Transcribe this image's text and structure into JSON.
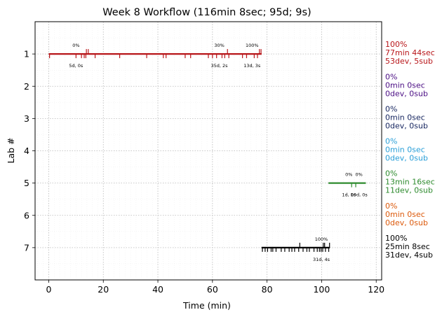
{
  "chart_data": {
    "type": "event-timeline",
    "title": "Week 8 Workflow (116min 8sec; 95d; 9s)",
    "xlabel": "Time (min)",
    "ylabel": "Lab #",
    "xlim": [
      -5,
      122
    ],
    "ylim": [
      8,
      0
    ],
    "xticks": [
      0,
      20,
      40,
      60,
      80,
      100,
      120
    ],
    "yticks": [
      1,
      2,
      3,
      4,
      5,
      6,
      7
    ],
    "grid": true,
    "labs": [
      {
        "lab": 1,
        "color": "#b8161a",
        "span": [
          0,
          78
        ],
        "dev_events": [
          0.3,
          10,
          12,
          13,
          13.6,
          17,
          26,
          35.9,
          42,
          43,
          50,
          52,
          58.5,
          60,
          61.5,
          63.5,
          64.5,
          66,
          71,
          72.5,
          75.3,
          76.5
        ],
        "sub_events": [
          13.8,
          14.5,
          65.5,
          77.2,
          77.8
        ],
        "annotations": [
          {
            "x": 10,
            "pct": "0%",
            "counts": "5d, 0s"
          },
          {
            "x": 62.5,
            "pct": "30%",
            "counts": "35d, 2s"
          },
          {
            "x": 74.5,
            "pct": "100%",
            "counts": "13d, 3s"
          }
        ],
        "summary": [
          "100%",
          "77min 44sec",
          "53dev, 5sub"
        ]
      },
      {
        "lab": 2,
        "color": "#4b0e84",
        "dev_events": [],
        "sub_events": [],
        "annotations": [],
        "summary": [
          "0%",
          "0min 0sec",
          "0dev, 0sub"
        ]
      },
      {
        "lab": 3,
        "color": "#16255f",
        "dev_events": [],
        "sub_events": [],
        "annotations": [],
        "summary": [
          "0%",
          "0min 0sec",
          "0dev, 0sub"
        ]
      },
      {
        "lab": 4,
        "color": "#2a9fd8",
        "dev_events": [],
        "sub_events": [],
        "annotations": [],
        "summary": [
          "0%",
          "0min 0sec",
          "0dev, 0sub"
        ]
      },
      {
        "lab": 5,
        "color": "#2e8b2e",
        "span": [
          102.5,
          116.2
        ],
        "dev_events": [
          111,
          112.5
        ],
        "sub_events": [],
        "annotations": [
          {
            "x": 110,
            "pct": "0%",
            "counts": "1d, 0s"
          },
          {
            "x": 113.7,
            "pct": "0%",
            "counts": "10d, 0s"
          }
        ],
        "summary": [
          "0%",
          "13min 16sec",
          "11dev, 0sub"
        ]
      },
      {
        "lab": 6,
        "color": "#dc5a0c",
        "dev_events": [],
        "sub_events": [],
        "annotations": [],
        "summary": [
          "0%",
          "0min 0sec",
          "0dev, 0sub"
        ]
      },
      {
        "lab": 7,
        "color": "#000000",
        "span": [
          78,
          103
        ],
        "dev_events": [
          78.3,
          79.3,
          80.2,
          81.5,
          82.1,
          83.3,
          85.2,
          86.5,
          88.1,
          89.1,
          90.1,
          91.6,
          93.2,
          94.6,
          95.5,
          97.2,
          98.4,
          99.2,
          99.8,
          100.4,
          101.4,
          102.6
        ],
        "sub_events": [
          92.0,
          100.6,
          101.1,
          102.9
        ],
        "annotations": [
          {
            "x": 99.9,
            "pct": "100%",
            "counts": "31d, 4s"
          }
        ],
        "summary": [
          "100%",
          "25min 8sec",
          "31dev, 4sub"
        ]
      }
    ]
  }
}
